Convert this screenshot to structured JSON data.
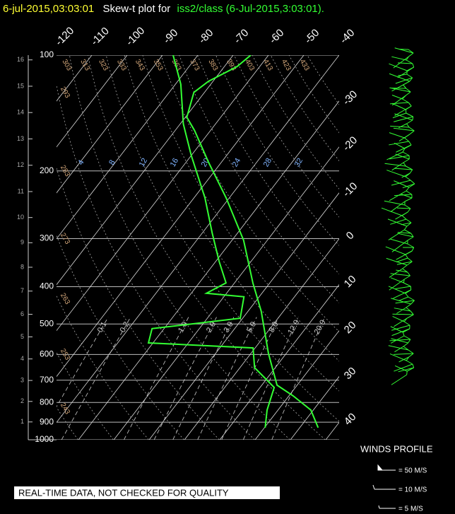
{
  "header": {
    "date": "6-jul-2015,03:03:01",
    "title": "Skew-t plot for",
    "source": "iss2/class (6-Jul-2015,3:03:01)."
  },
  "chart_data": {
    "type": "skewt",
    "pressure_ticks": [
      100,
      200,
      300,
      400,
      500,
      600,
      700,
      800,
      900,
      1000
    ],
    "height_ticks": [
      1,
      2,
      3,
      4,
      5,
      6,
      7,
      8,
      9,
      10,
      11,
      12,
      13,
      14,
      15,
      16
    ],
    "isotherms": [
      -120,
      -110,
      -100,
      -90,
      -80,
      -70,
      -60,
      -50,
      -40,
      -30,
      -20,
      -10,
      0,
      10,
      20,
      30,
      40
    ],
    "dry_adiabats": [
      243,
      253,
      263,
      273,
      283,
      293,
      303,
      313,
      323,
      333,
      343,
      353,
      363,
      373,
      383,
      393,
      403,
      413,
      423,
      433
    ],
    "mixing_ratios": [
      0.1,
      0.2,
      {
        "value": 1,
        "label": "1.0"
      },
      {
        "value": 2,
        "label": "2.0"
      },
      {
        "value": 3,
        "label": "3.0"
      },
      {
        "value": 5,
        "label": "5.0"
      },
      {
        "value": 8,
        "label": "8.0"
      },
      {
        "value": 12,
        "label": "12.0"
      },
      {
        "value": 20,
        "label": "20.0"
      }
    ],
    "upper_labels": [
      4,
      8,
      12,
      16,
      20,
      24,
      28,
      32
    ],
    "grid": true,
    "series": [
      {
        "color": "#33ff33",
        "pressure": [
          930,
          837,
          769,
          721,
          597,
          463,
          391,
          303,
          235,
          190,
          157,
          145,
          125,
          117,
          107,
          100
        ],
        "values": [
          35.2,
          29.3,
          21.2,
          14.3,
          5.0,
          -6.3,
          -14.8,
          -26.7,
          -40.9,
          -53.6,
          -64.5,
          -69.6,
          -73.0,
          -71.3,
          -66.4,
          -65.0
        ]
      },
      {
        "color": "#33ff33",
        "pressure": [
          930,
          837,
          731,
          649,
          577,
          560,
          514,
          483,
          425,
          416,
          391,
          344,
          290,
          235,
          182,
          151,
          119,
          100
        ],
        "values": [
          20.2,
          16.9,
          14.0,
          4.1,
          -0.6,
          -31.3,
          -33.4,
          -10.7,
          -14.3,
          -25.7,
          -22.4,
          -29.0,
          -37.2,
          -46.9,
          -60.1,
          -69.1,
          -78.5,
          -87.0
        ]
      }
    ]
  },
  "footer": {
    "notice": "REAL-TIME DATA, NOT CHECKED FOR QUALITY",
    "winds_title": "WINDS PROFILE",
    "legend": [
      "= 50 M/S",
      "= 10 M/S",
      "= 5 M/S"
    ]
  }
}
